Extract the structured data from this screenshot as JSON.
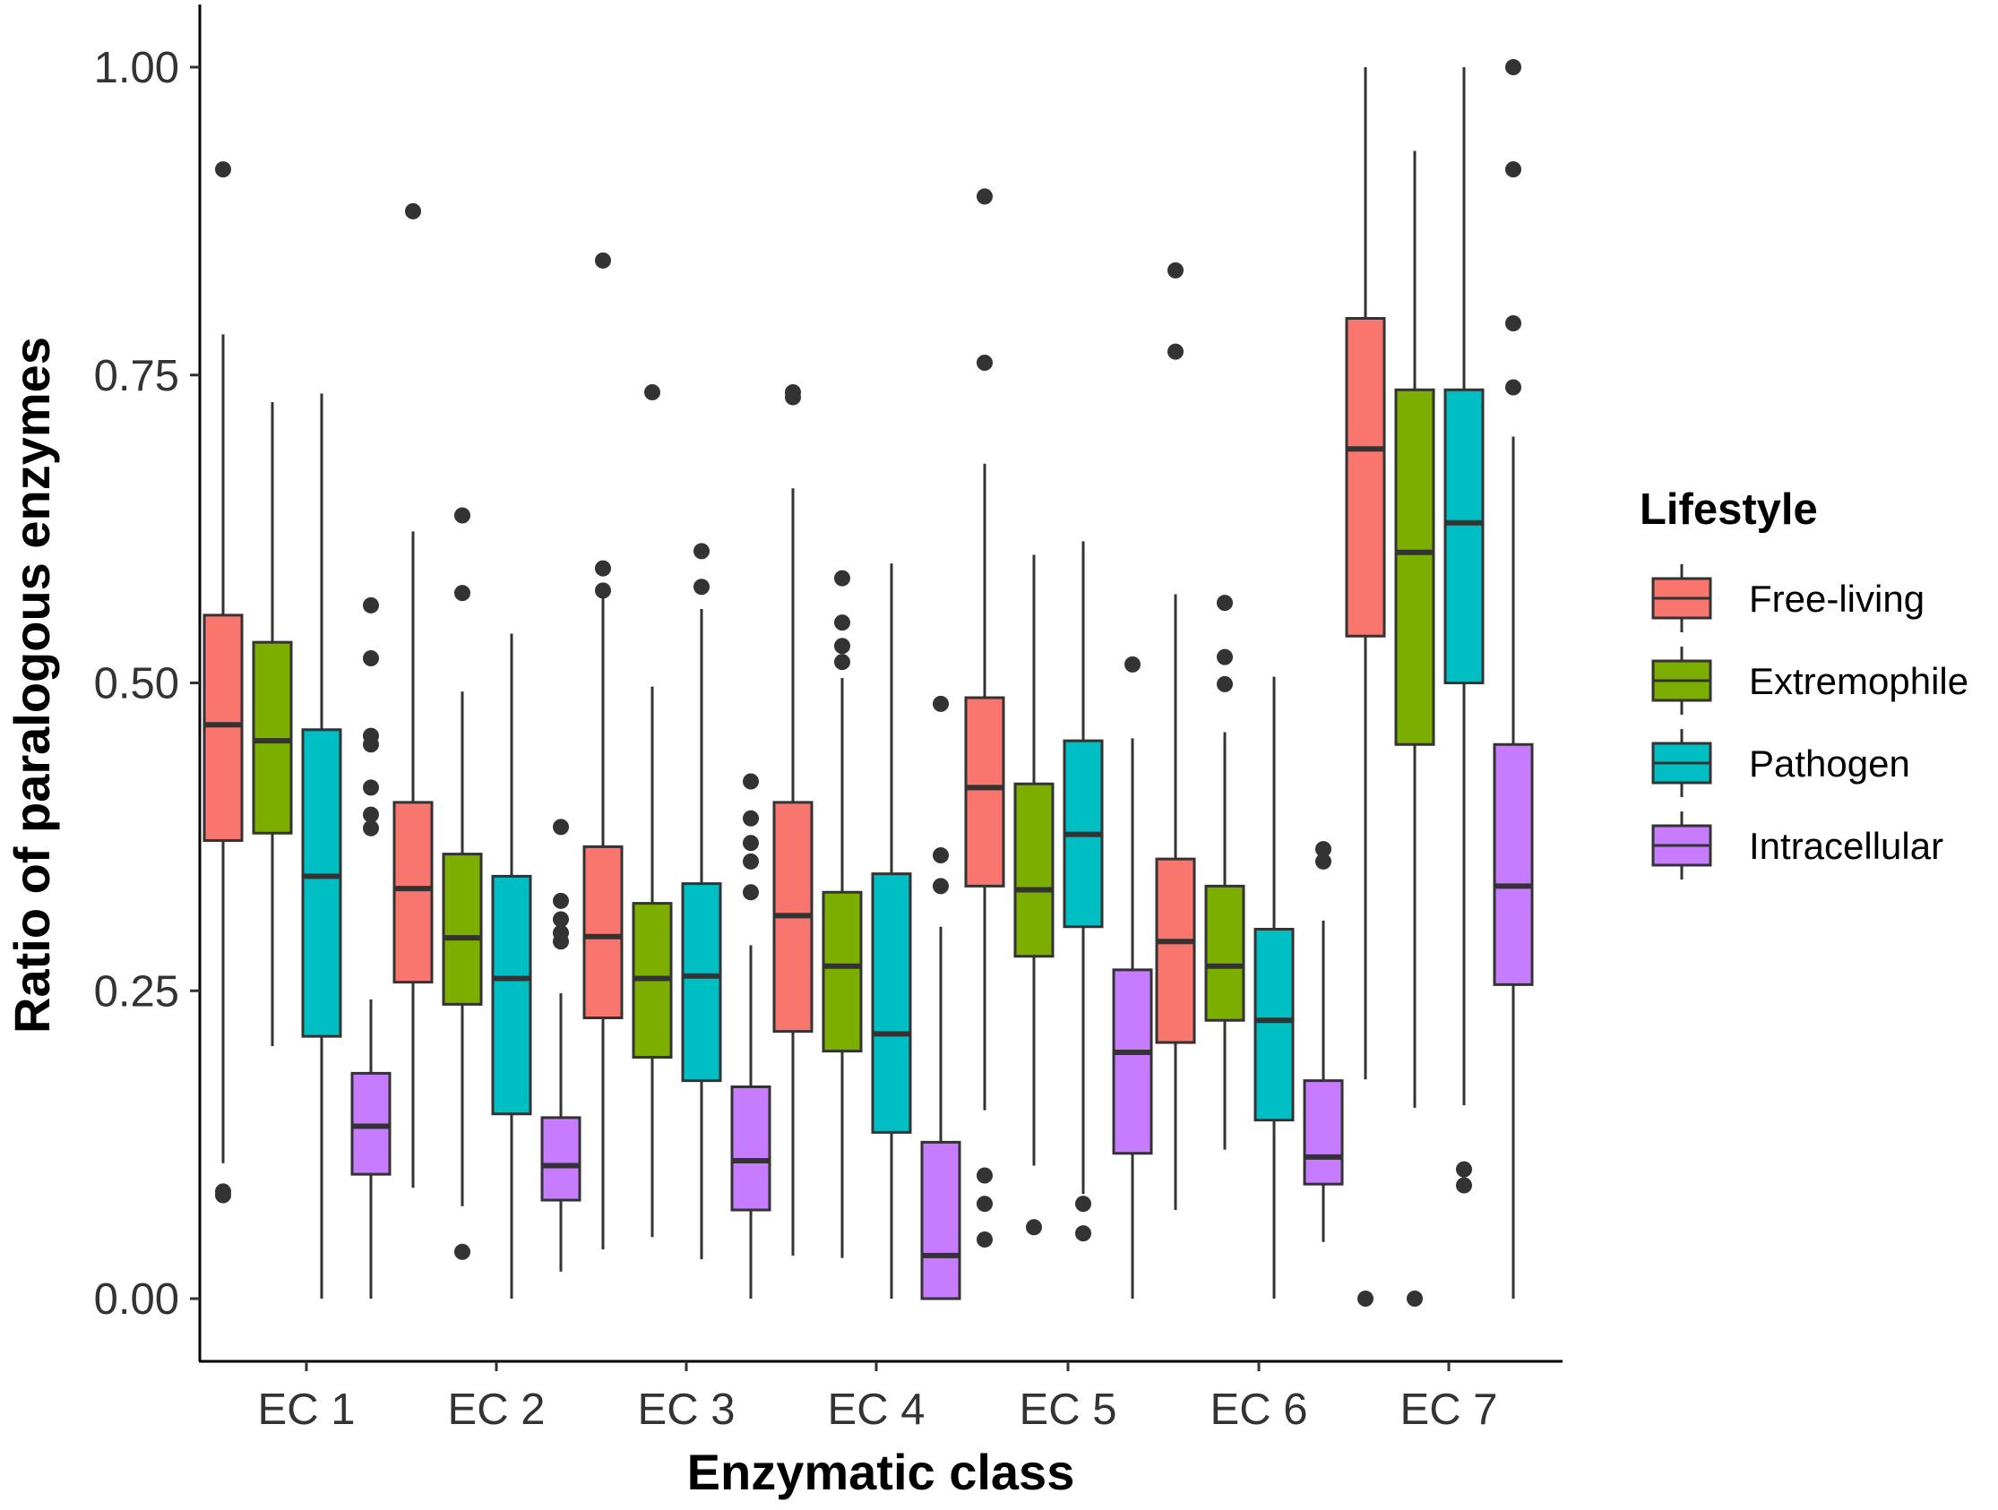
{
  "chart_data": {
    "type": "boxplot",
    "title": "",
    "xlabel": "Enzymatic class",
    "ylabel": "Ratio of paralogous enzymes",
    "ylim": [
      -0.05,
      1.05
    ],
    "yticks": [
      0.0,
      0.25,
      0.5,
      0.75,
      1.0
    ],
    "ytick_labels": [
      "0.00",
      "0.25",
      "0.50",
      "0.75",
      "1.00"
    ],
    "categories": [
      "EC 1",
      "EC 2",
      "EC 3",
      "EC 4",
      "EC 5",
      "EC 6",
      "EC 7"
    ],
    "legend_title": "Lifestyle",
    "legend_position": "right",
    "series": [
      {
        "name": "Free-living",
        "color": "#F8766D",
        "boxes": [
          {
            "q1": 0.372,
            "median": 0.466,
            "q3": 0.555,
            "whisker_low": 0.11,
            "whisker_high": 0.783,
            "outliers": [
              0.917,
              0.087,
              0.084
            ]
          },
          {
            "q1": 0.257,
            "median": 0.333,
            "q3": 0.403,
            "whisker_low": 0.09,
            "whisker_high": 0.623,
            "outliers": [
              0.883
            ]
          },
          {
            "q1": 0.228,
            "median": 0.294,
            "q3": 0.367,
            "whisker_low": 0.04,
            "whisker_high": 0.571,
            "outliers": [
              0.843,
              0.593,
              0.575
            ]
          },
          {
            "q1": 0.217,
            "median": 0.311,
            "q3": 0.403,
            "whisker_low": 0.035,
            "whisker_high": 0.658,
            "outliers": [
              0.736,
              0.732
            ]
          },
          {
            "q1": 0.335,
            "median": 0.415,
            "q3": 0.488,
            "whisker_low": 0.153,
            "whisker_high": 0.678,
            "outliers": [
              0.895,
              0.76,
              0.1,
              0.077,
              0.048
            ]
          },
          {
            "q1": 0.208,
            "median": 0.29,
            "q3": 0.357,
            "whisker_low": 0.072,
            "whisker_high": 0.572,
            "outliers": [
              0.835,
              0.769
            ]
          },
          {
            "q1": 0.538,
            "median": 0.69,
            "q3": 0.796,
            "whisker_low": 0.178,
            "whisker_high": 1.0,
            "outliers": [
              0.0
            ]
          }
        ]
      },
      {
        "name": "Extremophile",
        "color": "#7CAE00",
        "boxes": [
          {
            "q1": 0.378,
            "median": 0.453,
            "q3": 0.533,
            "whisker_low": 0.205,
            "whisker_high": 0.728,
            "outliers": []
          },
          {
            "q1": 0.239,
            "median": 0.293,
            "q3": 0.361,
            "whisker_low": 0.075,
            "whisker_high": 0.493,
            "outliers": [
              0.636,
              0.573,
              0.038
            ]
          },
          {
            "q1": 0.196,
            "median": 0.26,
            "q3": 0.321,
            "whisker_low": 0.05,
            "whisker_high": 0.497,
            "outliers": [
              0.736
            ]
          },
          {
            "q1": 0.201,
            "median": 0.27,
            "q3": 0.33,
            "whisker_low": 0.033,
            "whisker_high": 0.504,
            "outliers": [
              0.585,
              0.549,
              0.53,
              0.517
            ]
          },
          {
            "q1": 0.278,
            "median": 0.332,
            "q3": 0.418,
            "whisker_low": 0.108,
            "whisker_high": 0.604,
            "outliers": [
              0.058
            ]
          },
          {
            "q1": 0.226,
            "median": 0.27,
            "q3": 0.335,
            "whisker_low": 0.121,
            "whisker_high": 0.46,
            "outliers": [
              0.565,
              0.521,
              0.499
            ]
          },
          {
            "q1": 0.45,
            "median": 0.606,
            "q3": 0.738,
            "whisker_low": 0.155,
            "whisker_high": 0.932,
            "outliers": [
              0.0
            ]
          }
        ]
      },
      {
        "name": "Pathogen",
        "color": "#00BFC4",
        "boxes": [
          {
            "q1": 0.213,
            "median": 0.343,
            "q3": 0.462,
            "whisker_low": 0.0,
            "whisker_high": 0.735,
            "outliers": []
          },
          {
            "q1": 0.15,
            "median": 0.26,
            "q3": 0.343,
            "whisker_low": 0.0,
            "whisker_high": 0.54,
            "outliers": []
          },
          {
            "q1": 0.177,
            "median": 0.262,
            "q3": 0.337,
            "whisker_low": 0.032,
            "whisker_high": 0.56,
            "outliers": [
              0.607,
              0.578
            ]
          },
          {
            "q1": 0.135,
            "median": 0.215,
            "q3": 0.345,
            "whisker_low": 0.0,
            "whisker_high": 0.597,
            "outliers": []
          },
          {
            "q1": 0.302,
            "median": 0.377,
            "q3": 0.453,
            "whisker_low": 0.085,
            "whisker_high": 0.615,
            "outliers": [
              0.077,
              0.053
            ]
          },
          {
            "q1": 0.145,
            "median": 0.226,
            "q3": 0.3,
            "whisker_low": 0.0,
            "whisker_high": 0.505,
            "outliers": []
          },
          {
            "q1": 0.5,
            "median": 0.63,
            "q3": 0.738,
            "whisker_low": 0.157,
            "whisker_high": 1.0,
            "outliers": [
              0.105,
              0.092
            ]
          }
        ]
      },
      {
        "name": "Intracellular",
        "color": "#C77CFF",
        "boxes": [
          {
            "q1": 0.101,
            "median": 0.14,
            "q3": 0.183,
            "whisker_low": 0.0,
            "whisker_high": 0.243,
            "outliers": [
              0.563,
              0.52,
              0.457,
              0.45,
              0.415,
              0.393,
              0.382
            ]
          },
          {
            "q1": 0.08,
            "median": 0.108,
            "q3": 0.147,
            "whisker_low": 0.022,
            "whisker_high": 0.248,
            "outliers": [
              0.383,
              0.323,
              0.308,
              0.297,
              0.29
            ]
          },
          {
            "q1": 0.072,
            "median": 0.112,
            "q3": 0.172,
            "whisker_low": 0.0,
            "whisker_high": 0.287,
            "outliers": [
              0.42,
              0.39,
              0.37,
              0.355,
              0.33
            ]
          },
          {
            "q1": 0.0,
            "median": 0.035,
            "q3": 0.127,
            "whisker_low": 0.0,
            "whisker_high": 0.302,
            "outliers": [
              0.483,
              0.36,
              0.335
            ]
          },
          {
            "q1": 0.118,
            "median": 0.2,
            "q3": 0.267,
            "whisker_low": 0.0,
            "whisker_high": 0.455,
            "outliers": [
              0.515
            ]
          },
          {
            "q1": 0.093,
            "median": 0.115,
            "q3": 0.177,
            "whisker_low": 0.046,
            "whisker_high": 0.307,
            "outliers": [
              0.365,
              0.355
            ]
          },
          {
            "q1": 0.255,
            "median": 0.335,
            "q3": 0.45,
            "whisker_low": 0.0,
            "whisker_high": 0.7,
            "outliers": [
              1.0,
              0.917,
              0.792,
              0.74
            ]
          }
        ]
      }
    ]
  }
}
